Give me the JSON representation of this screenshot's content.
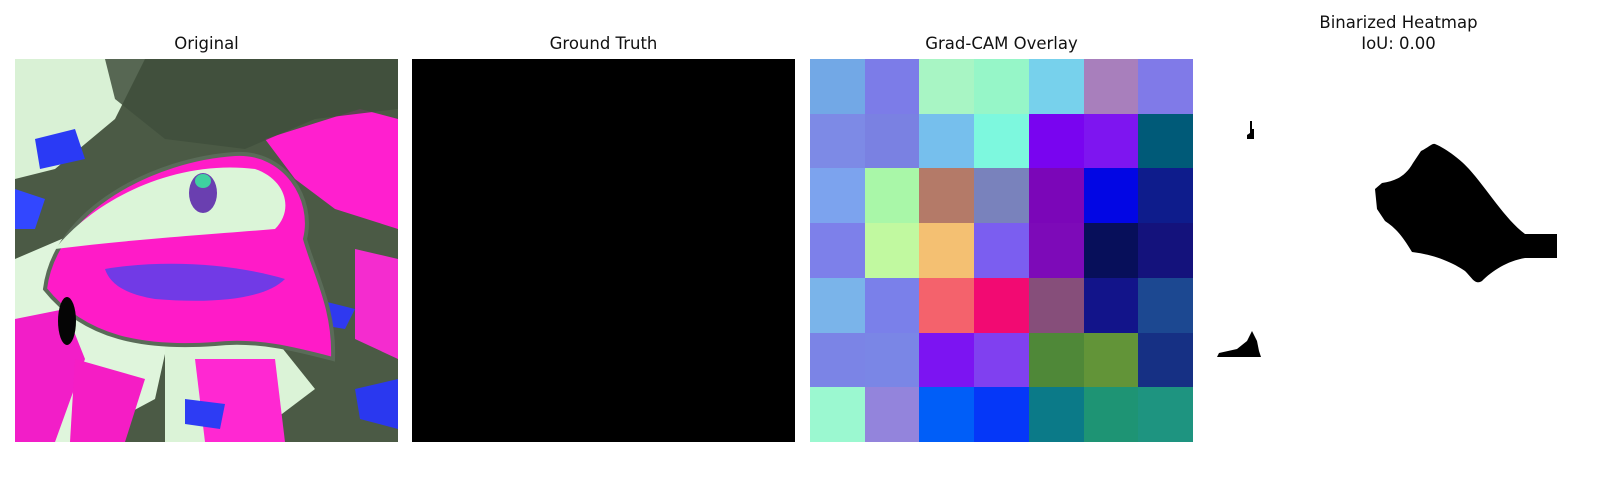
{
  "panels": [
    {
      "title": "Original"
    },
    {
      "title": "Ground Truth"
    },
    {
      "title": "Grad-CAM Overlay"
    },
    {
      "title": "Binarized Heatmap",
      "subtitle": "IoU: 0.00"
    }
  ],
  "gradcam_grid": [
    [
      "#72a8e6",
      "#7c7ce8",
      "#a8f5c4",
      "#96f6c8",
      "#77d1ec",
      "#a87fbc",
      "#807ae8"
    ],
    [
      "#7d8ae6",
      "#7a81e2",
      "#76bfed",
      "#7df8de",
      "#7904f0",
      "#7e15f0",
      "#005a78"
    ],
    [
      "#7ca3ee",
      "#a9f7a8",
      "#b47a68",
      "#7982bc",
      "#7b06b8",
      "#0206e4",
      "#0e1c8c"
    ],
    [
      "#7d80ea",
      "#c1f9a0",
      "#f4c072",
      "#7b5ef0",
      "#7d0ab8",
      "#070f5a",
      "#14127c"
    ],
    [
      "#7ab4ea",
      "#7a80ea",
      "#f4626c",
      "#f20a72",
      "#864e7a",
      "#12148a",
      "#1c4891"
    ],
    [
      "#7b84e6",
      "#7a86e6",
      "#7c14f2",
      "#8040f0",
      "#4f8838",
      "#629438",
      "#163084"
    ],
    [
      "#9bf8d0",
      "#9384dc",
      "#005ef8",
      "#0537f8",
      "#0b7a88",
      "#1e9474",
      "#1e9480"
    ]
  ]
}
